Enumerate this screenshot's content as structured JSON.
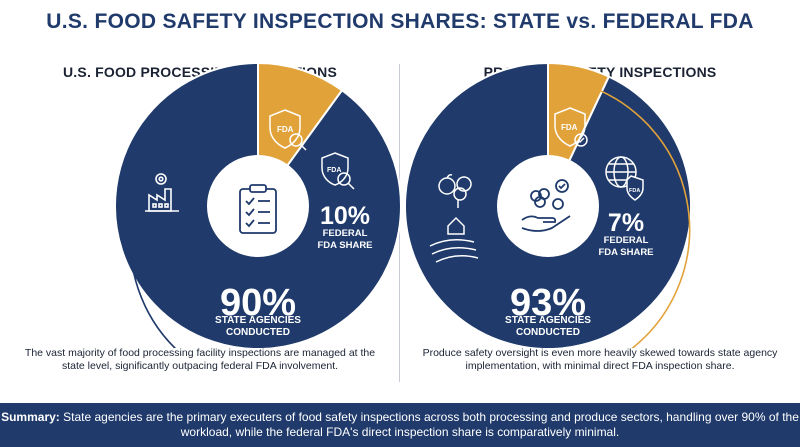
{
  "title": "U.S. FOOD SAFETY INSPECTION SHARES: STATE vs. FEDERAL FDA",
  "colors": {
    "state": "#1f3a6b",
    "federal": "#e2a23a",
    "accent_text": "#ffffff",
    "title": "#1f3a6b"
  },
  "icons": [
    "factory-icon",
    "clipboard-checklist-icon",
    "fda-shield-icon",
    "magnifier-icon",
    "fruit-tree-icon",
    "farm-field-icon",
    "hand-produce-icon",
    "globe-fda-icon"
  ],
  "chart_data": [
    {
      "type": "pie",
      "title": "U.S. FOOD PROCESSING INSPECTIONS",
      "slices": [
        {
          "label": "STATE AGENCIES CONDUCTED",
          "value": 90,
          "display": "90%",
          "color": "#1f3a6b"
        },
        {
          "label": "FEDERAL FDA SHARE",
          "value": 10,
          "display": "10%",
          "color": "#e2a23a"
        }
      ],
      "description": "The vast majority of food processing facility inspections are managed at the state level, significantly outpacing federal FDA involvement."
    },
    {
      "type": "pie",
      "title": "PRODUCE SAFETY INSPECTIONS",
      "slices": [
        {
          "label": "STATE AGENCIES CONDUCTED",
          "value": 93,
          "display": "93%",
          "color": "#1f3a6b"
        },
        {
          "label": "FEDERAL FDA SHARE",
          "value": 7,
          "display": "7%",
          "color": "#e2a23a"
        }
      ],
      "description": "Produce safety oversight is even more heavily skewed towards state agency implementation, with minimal direct FDA inspection share."
    }
  ],
  "summary": {
    "label": "Summary:",
    "text": "State agencies are the primary executers of food safety inspections across both processing and produce sectors, handling over 90% of the workload, while the federal FDA's direct inspection share is comparatively minimal."
  }
}
